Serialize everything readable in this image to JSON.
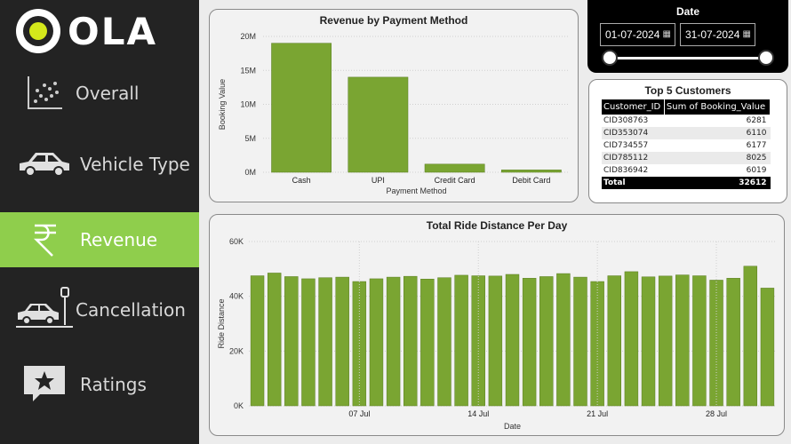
{
  "brand": {
    "name": "OLA"
  },
  "nav": [
    {
      "label": "Overall",
      "icon": "scatter-chart-icon",
      "active": false
    },
    {
      "label": "Vehicle Type",
      "icon": "car-icon",
      "active": false
    },
    {
      "label": "Revenue",
      "icon": "rupee-icon",
      "active": true
    },
    {
      "label": "Cancellation",
      "icon": "car-accident-icon",
      "active": false
    },
    {
      "label": "Ratings",
      "icon": "star-comment-icon",
      "active": false
    }
  ],
  "date_filter": {
    "title": "Date",
    "start": "01-07-2024",
    "end": "31-07-2024"
  },
  "top_customers": {
    "title": "Top 5 Customers",
    "columns": [
      "Customer_ID",
      "Sum of Booking_Value"
    ],
    "rows": [
      [
        "CID308763",
        "6281"
      ],
      [
        "CID353074",
        "6110"
      ],
      [
        "CID734557",
        "6177"
      ],
      [
        "CID785112",
        "8025"
      ],
      [
        "CID836942",
        "6019"
      ]
    ],
    "total_label": "Total",
    "total_value": "32612"
  },
  "colors": {
    "accent": "#8fce4c",
    "bar": "#7aa532",
    "sidebar": "#232323"
  },
  "chart_data": [
    {
      "type": "bar",
      "title": "Revenue by Payment Method",
      "categories": [
        "Cash",
        "UPI",
        "Credit Card",
        "Debit Card"
      ],
      "values": [
        19000000,
        14000000,
        1200000,
        350000
      ],
      "xlabel": "Payment Method",
      "ylabel": "Booking Value",
      "ylim": [
        0,
        20000000
      ],
      "yticks": [
        0,
        5000000,
        10000000,
        15000000,
        20000000
      ],
      "ytick_labels": [
        "0M",
        "5M",
        "10M",
        "15M",
        "20M"
      ]
    },
    {
      "type": "bar",
      "title": "Total Ride Distance Per Day",
      "x": [
        "2024-07-01",
        "2024-07-02",
        "2024-07-03",
        "2024-07-04",
        "2024-07-05",
        "2024-07-06",
        "2024-07-07",
        "2024-07-08",
        "2024-07-09",
        "2024-07-10",
        "2024-07-11",
        "2024-07-12",
        "2024-07-13",
        "2024-07-14",
        "2024-07-15",
        "2024-07-16",
        "2024-07-17",
        "2024-07-18",
        "2024-07-19",
        "2024-07-20",
        "2024-07-21",
        "2024-07-22",
        "2024-07-23",
        "2024-07-24",
        "2024-07-25",
        "2024-07-26",
        "2024-07-27",
        "2024-07-28",
        "2024-07-29",
        "2024-07-30",
        "2024-07-31"
      ],
      "values": [
        47500,
        48500,
        47200,
        46400,
        46800,
        47000,
        45400,
        46400,
        47000,
        47300,
        46300,
        46800,
        47700,
        47500,
        47400,
        48000,
        46600,
        47200,
        48300,
        47000,
        45400,
        47500,
        49000,
        47100,
        47400,
        47800,
        47500,
        45900,
        46600,
        51000,
        43000
      ],
      "xlabel": "Date",
      "ylabel": "Ride Distance",
      "ylim": [
        0,
        60000
      ],
      "yticks": [
        0,
        20000,
        40000,
        60000
      ],
      "ytick_labels": [
        "0K",
        "20K",
        "40K",
        "60K"
      ],
      "xtick_labels": [
        "07 Jul",
        "14 Jul",
        "21 Jul",
        "28 Jul"
      ],
      "xtick_index": [
        6,
        13,
        20,
        27
      ]
    }
  ]
}
